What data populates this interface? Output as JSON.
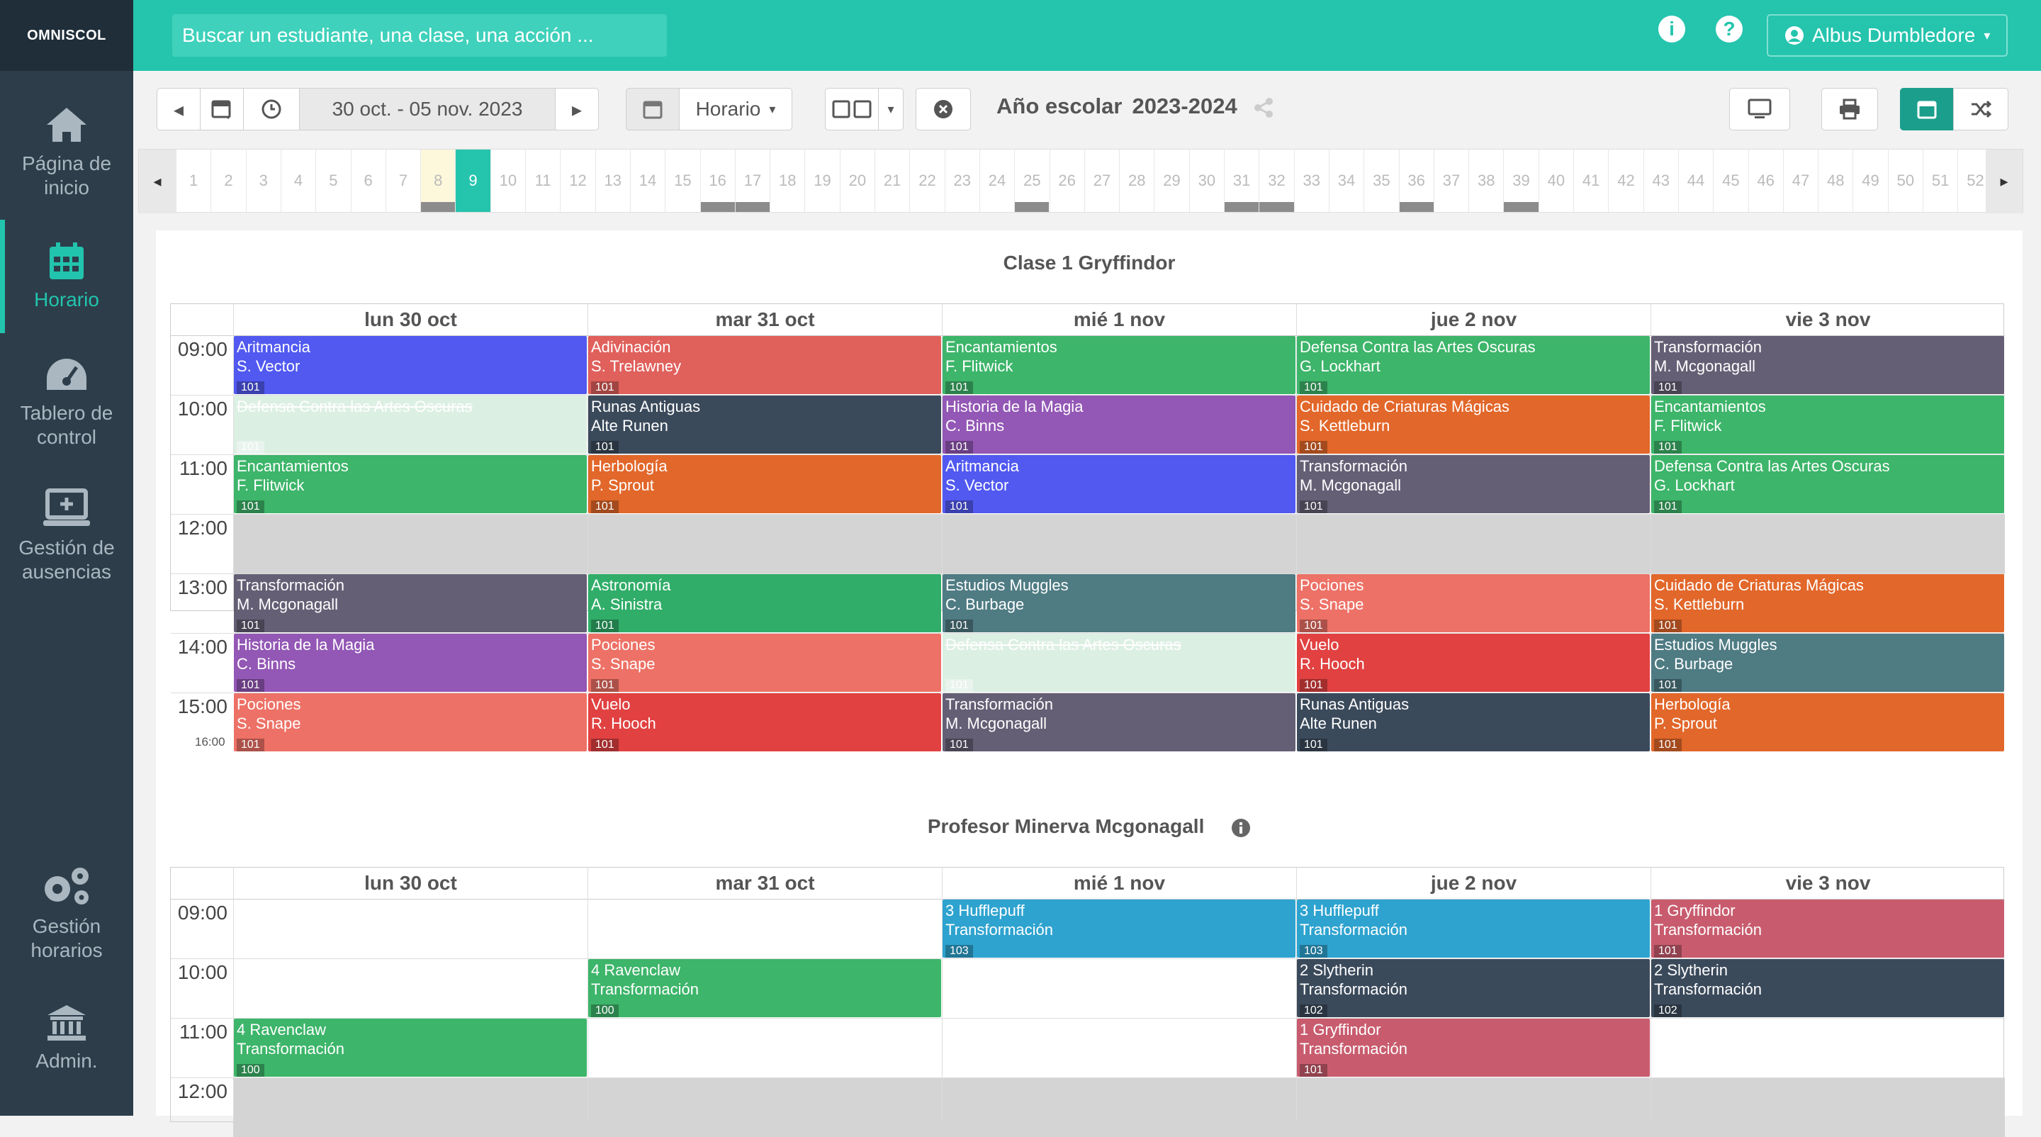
{
  "app": {
    "logo": "OMNISCOL"
  },
  "search": {
    "placeholder": "Buscar un estudiante, una clase, una acción ..."
  },
  "user": {
    "name": "Albus Dumbledore"
  },
  "sidebar": [
    {
      "label": "Página de inicio",
      "icon": "home-icon"
    },
    {
      "label": "Horario",
      "icon": "calendar-icon",
      "active": true
    },
    {
      "label": "Tablero de control",
      "icon": "dashboard-icon"
    },
    {
      "label": "Gestión de ausencias",
      "icon": "monitor-icon"
    },
    {
      "label": "Gestión horarios",
      "icon": "gears-icon"
    },
    {
      "label": "Admin.",
      "icon": "bank-icon"
    }
  ],
  "toolbar": {
    "date_range": "30 oct. - 05 nov. 2023",
    "view_select": "Horario",
    "year_label": "Año escolar",
    "year_value": "2023-2024"
  },
  "weeks": {
    "numbers": [
      1,
      2,
      3,
      4,
      5,
      6,
      7,
      8,
      9,
      10,
      11,
      12,
      13,
      14,
      15,
      16,
      17,
      18,
      19,
      20,
      21,
      22,
      23,
      24,
      25,
      26,
      27,
      28,
      29,
      30,
      31,
      32,
      33,
      34,
      35,
      36,
      37,
      38,
      39,
      40,
      41,
      42,
      43,
      44,
      45,
      46,
      47,
      48,
      49,
      50,
      51,
      52
    ],
    "current": 9,
    "previous": 8,
    "marked": [
      8,
      16,
      17,
      25,
      31,
      32,
      36,
      39
    ]
  },
  "colors": {
    "teal": "#25c4ad",
    "sidebar": "#2d3e4a"
  },
  "days": [
    "lun 30 oct",
    "mar 31 oct",
    "mié 1 nov",
    "jue 2 nov",
    "vie 3 nov"
  ],
  "class_schedule": {
    "title": "Clase 1 Gryffindor",
    "hours": [
      "09:00",
      "10:00",
      "11:00",
      "12:00",
      "13:00",
      "14:00",
      "15:00"
    ],
    "end_time": "16:00",
    "events": [
      {
        "day": 0,
        "slot": 0,
        "subject": "Aritmancia",
        "teacher": "S. Vector",
        "room": "101",
        "color": "#5159f0"
      },
      {
        "day": 0,
        "slot": 1,
        "subject": "Defensa Contra las Artes Oscuras",
        "teacher": "",
        "room": "101",
        "color": "#dcefe3",
        "cancelled": true
      },
      {
        "day": 0,
        "slot": 2,
        "subject": "Encantamientos",
        "teacher": "F. Flitwick",
        "room": "101",
        "color": "#3db56a"
      },
      {
        "day": 0,
        "slot": 4,
        "subject": "Transformación",
        "teacher": "M. Mcgonagall",
        "room": "101",
        "color": "#655f75"
      },
      {
        "day": 0,
        "slot": 5,
        "subject": "Historia de la Magia",
        "teacher": "C. Binns",
        "room": "101",
        "color": "#9357b5"
      },
      {
        "day": 0,
        "slot": 6,
        "subject": "Pociones",
        "teacher": "S. Snape",
        "room": "101",
        "color": "#ed7166"
      },
      {
        "day": 1,
        "slot": 0,
        "subject": "Adivinación",
        "teacher": "S. Trelawney",
        "room": "101",
        "color": "#e0605c"
      },
      {
        "day": 1,
        "slot": 1,
        "subject": "Runas Antiguas",
        "teacher": "Alte Runen",
        "room": "101",
        "color": "#3b4a5b"
      },
      {
        "day": 1,
        "slot": 2,
        "subject": "Herbología",
        "teacher": "P. Sprout",
        "room": "101",
        "color": "#e2672a"
      },
      {
        "day": 1,
        "slot": 4,
        "subject": "Astronomía",
        "teacher": "A. Sinistra",
        "room": "101",
        "color": "#30ad68"
      },
      {
        "day": 1,
        "slot": 5,
        "subject": "Pociones",
        "teacher": "S. Snape",
        "room": "101",
        "color": "#ed7166"
      },
      {
        "day": 1,
        "slot": 6,
        "subject": "Vuelo",
        "teacher": "R. Hooch",
        "room": "101",
        "color": "#e14141"
      },
      {
        "day": 2,
        "slot": 0,
        "subject": "Encantamientos",
        "teacher": "F. Flitwick",
        "room": "101",
        "color": "#3db56a"
      },
      {
        "day": 2,
        "slot": 1,
        "subject": "Historia de la Magia",
        "teacher": "C. Binns",
        "room": "101",
        "color": "#9357b5"
      },
      {
        "day": 2,
        "slot": 2,
        "subject": "Aritmancia",
        "teacher": "S. Vector",
        "room": "101",
        "color": "#5159f0"
      },
      {
        "day": 2,
        "slot": 4,
        "subject": "Estudios Muggles",
        "teacher": "C. Burbage",
        "room": "101",
        "color": "#4f7b83"
      },
      {
        "day": 2,
        "slot": 5,
        "subject": "Defensa Contra las Artes Oscuras",
        "teacher": "",
        "room": "101",
        "color": "#dcefe3",
        "cancelled": true
      },
      {
        "day": 2,
        "slot": 6,
        "subject": "Transformación",
        "teacher": "M. Mcgonagall",
        "room": "101",
        "color": "#655f75"
      },
      {
        "day": 3,
        "slot": 0,
        "subject": "Defensa Contra las Artes Oscuras",
        "teacher": "G. Lockhart",
        "room": "101",
        "color": "#3db56a"
      },
      {
        "day": 3,
        "slot": 1,
        "subject": "Cuidado de Criaturas Mágicas",
        "teacher": "S. Kettleburn",
        "room": "101",
        "color": "#e2672a"
      },
      {
        "day": 3,
        "slot": 2,
        "subject": "Transformación",
        "teacher": "M. Mcgonagall",
        "room": "101",
        "color": "#655f75"
      },
      {
        "day": 3,
        "slot": 4,
        "subject": "Pociones",
        "teacher": "S. Snape",
        "room": "101",
        "color": "#ed7166"
      },
      {
        "day": 3,
        "slot": 5,
        "subject": "Vuelo",
        "teacher": "R. Hooch",
        "room": "101",
        "color": "#e14141"
      },
      {
        "day": 3,
        "slot": 6,
        "subject": "Runas Antiguas",
        "teacher": "Alte Runen",
        "room": "101",
        "color": "#3b4a5b"
      },
      {
        "day": 4,
        "slot": 0,
        "subject": "Transformación",
        "teacher": "M. Mcgonagall",
        "room": "101",
        "color": "#655f75"
      },
      {
        "day": 4,
        "slot": 1,
        "subject": "Encantamientos",
        "teacher": "F. Flitwick",
        "room": "101",
        "color": "#3db56a"
      },
      {
        "day": 4,
        "slot": 2,
        "subject": "Defensa Contra las Artes Oscuras",
        "teacher": "G. Lockhart",
        "room": "101",
        "color": "#3db56a"
      },
      {
        "day": 4,
        "slot": 4,
        "subject": "Cuidado de Criaturas Mágicas",
        "teacher": "S. Kettleburn",
        "room": "101",
        "color": "#e2672a"
      },
      {
        "day": 4,
        "slot": 5,
        "subject": "Estudios Muggles",
        "teacher": "C. Burbage",
        "room": "101",
        "color": "#4f7b83"
      },
      {
        "day": 4,
        "slot": 6,
        "subject": "Herbología",
        "teacher": "P. Sprout",
        "room": "101",
        "color": "#e2672a"
      }
    ]
  },
  "teacher_schedule": {
    "title": "Profesor Minerva Mcgonagall",
    "hours": [
      "09:00",
      "10:00",
      "11:00",
      "12:00"
    ],
    "events": [
      {
        "day": 0,
        "slot": 2,
        "subject": "4 Ravenclaw",
        "teacher": "Transformación",
        "room": "100",
        "color": "#3db56a"
      },
      {
        "day": 1,
        "slot": 1,
        "subject": "4 Ravenclaw",
        "teacher": "Transformación",
        "room": "100",
        "color": "#3db56a"
      },
      {
        "day": 2,
        "slot": 0,
        "subject": "3 Hufflepuff",
        "teacher": "Transformación",
        "room": "103",
        "color": "#2ea3cf"
      },
      {
        "day": 3,
        "slot": 0,
        "subject": "3 Hufflepuff",
        "teacher": "Transformación",
        "room": "103",
        "color": "#2ea3cf"
      },
      {
        "day": 3,
        "slot": 1,
        "subject": "2 Slytherin",
        "teacher": "Transformación",
        "room": "102",
        "color": "#3b4a5b"
      },
      {
        "day": 3,
        "slot": 2,
        "subject": "1 Gryffindor",
        "teacher": "Transformación",
        "room": "101",
        "color": "#c85c6e"
      },
      {
        "day": 4,
        "slot": 0,
        "subject": "1 Gryffindor",
        "teacher": "Transformación",
        "room": "101",
        "color": "#c85c6e"
      },
      {
        "day": 4,
        "slot": 1,
        "subject": "2 Slytherin",
        "teacher": "Transformación",
        "room": "102",
        "color": "#3b4a5b"
      }
    ]
  }
}
